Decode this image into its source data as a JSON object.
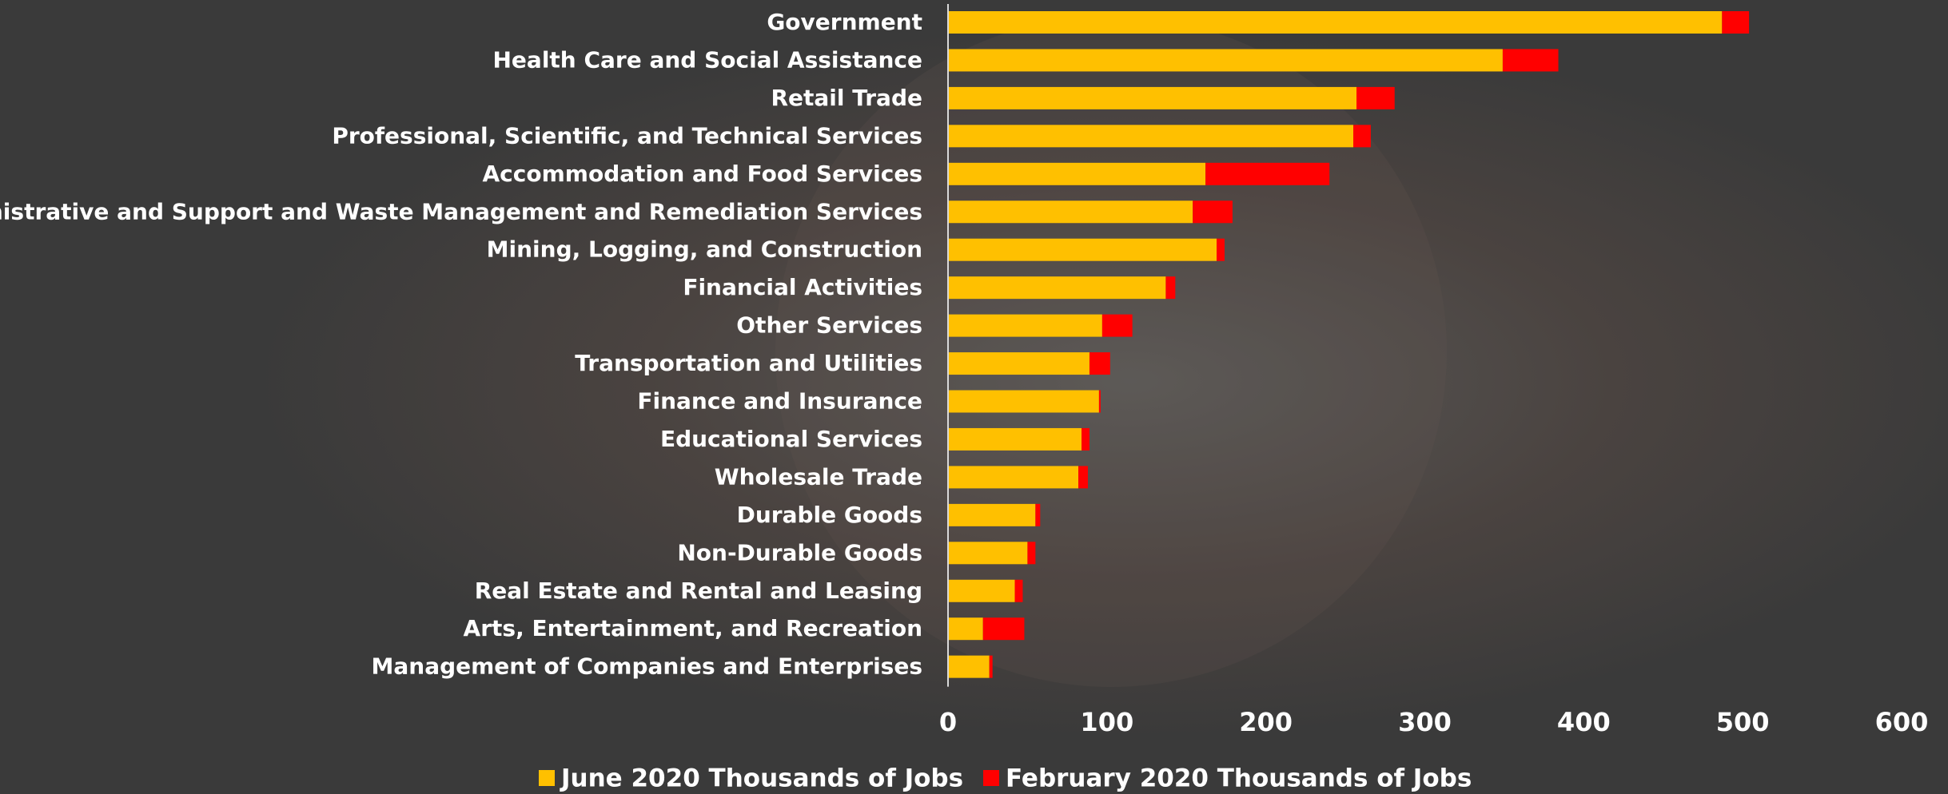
{
  "chart_data": {
    "type": "stacked-barh",
    "categories": [
      "Government",
      "Health Care and Social Assistance",
      "Retail Trade",
      "Professional, Scientific, and Technical Services",
      "Accommodation and Food Services",
      "Administrative and Support and Waste Management and Remediation Services",
      "Mining, Logging, and Construction",
      "Financial Activities",
      "Other Services",
      "Transportation and Utilities",
      "Finance and Insurance",
      "Educational Services",
      "Wholesale Trade",
      "Durable Goods",
      "Non-Durable Goods",
      "Real Estate and Rental and Leasing",
      "Arts, Entertainment, and Recreation",
      "Management of Companies and Enterprises"
    ],
    "series": [
      {
        "name": "June 2020 Thousands of Jobs",
        "color": "#ffc000",
        "values": [
          487,
          349,
          257,
          255,
          162,
          154,
          169,
          137,
          97,
          89,
          95,
          84,
          82,
          55,
          50,
          42,
          22,
          26
        ]
      },
      {
        "name": "February 2020 Thousands of Jobs",
        "color": "#ff0000",
        "values": [
          17,
          35,
          24,
          11,
          78,
          25,
          5,
          6,
          19,
          13,
          1,
          5,
          6,
          3,
          5,
          5,
          26,
          2
        ]
      }
    ],
    "xlim": [
      0,
      600
    ],
    "xticks": [
      0,
      100,
      200,
      300,
      400,
      500,
      600
    ]
  }
}
